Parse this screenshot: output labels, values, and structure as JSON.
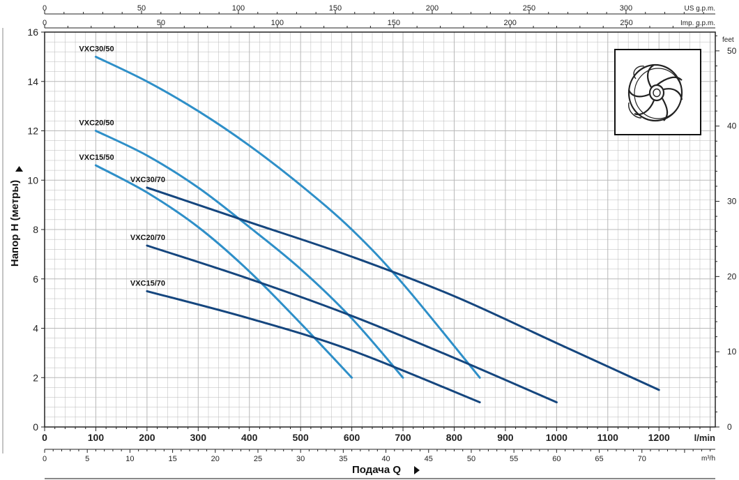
{
  "chart_data": {
    "type": "line",
    "ylabel": "Напор H (метры)",
    "xlabel": "Подача Q",
    "ylim": [
      0,
      16
    ],
    "xlim_lmin": [
      0,
      1310
    ],
    "grid": true,
    "colors": {
      "series_50": "#2e8fc8",
      "series_70": "#15467e",
      "grid": "#b8b8b8",
      "frame": "#222222"
    },
    "axes": {
      "lmin": {
        "unit": "l/min",
        "ticks": [
          0,
          100,
          200,
          300,
          400,
          500,
          600,
          700,
          800,
          900,
          1000,
          1100,
          1200
        ]
      },
      "m3h": {
        "unit": "m³/h",
        "ticks": [
          0,
          5,
          10,
          15,
          20,
          25,
          30,
          35,
          40,
          45,
          50,
          55,
          60,
          65,
          70
        ]
      },
      "usgpm": {
        "unit": "US g.p.m.",
        "ticks": [
          0,
          50,
          100,
          150,
          200,
          250,
          300
        ]
      },
      "impgpm": {
        "unit": "Imp. g.p.m.",
        "ticks": [
          0,
          50,
          100,
          150,
          200,
          250
        ]
      },
      "meters": {
        "ticks": [
          0,
          2,
          4,
          6,
          8,
          10,
          12,
          14,
          16
        ]
      },
      "feet": {
        "unit": "feet",
        "ticks": [
          0,
          10,
          20,
          30,
          40,
          50
        ]
      }
    },
    "series": [
      {
        "name": "VXC30/50",
        "group": "50",
        "x": [
          100,
          200,
          300,
          400,
          500,
          600,
          700,
          850
        ],
        "y": [
          15.0,
          14.0,
          12.8,
          11.4,
          9.8,
          8.0,
          5.8,
          2.0
        ]
      },
      {
        "name": "VXC20/50",
        "group": "50",
        "x": [
          100,
          200,
          300,
          400,
          500,
          600,
          700
        ],
        "y": [
          12.0,
          11.0,
          9.7,
          8.1,
          6.4,
          4.4,
          2.0
        ]
      },
      {
        "name": "VXC15/50",
        "group": "50",
        "x": [
          100,
          200,
          300,
          400,
          500,
          600
        ],
        "y": [
          10.6,
          9.5,
          8.1,
          6.3,
          4.2,
          2.0
        ]
      },
      {
        "name": "VXC30/70",
        "group": "70",
        "x": [
          200,
          400,
          600,
          800,
          1000,
          1200
        ],
        "y": [
          9.7,
          8.3,
          6.9,
          5.3,
          3.4,
          1.5
        ]
      },
      {
        "name": "VXC20/70",
        "group": "70",
        "x": [
          200,
          400,
          600,
          800,
          1000
        ],
        "y": [
          7.35,
          6.0,
          4.5,
          2.8,
          1.0
        ]
      },
      {
        "name": "VXC15/70",
        "group": "70",
        "x": [
          200,
          400,
          600,
          850
        ],
        "y": [
          5.5,
          4.4,
          3.1,
          1.0
        ]
      }
    ],
    "icon": "impeller-icon"
  }
}
